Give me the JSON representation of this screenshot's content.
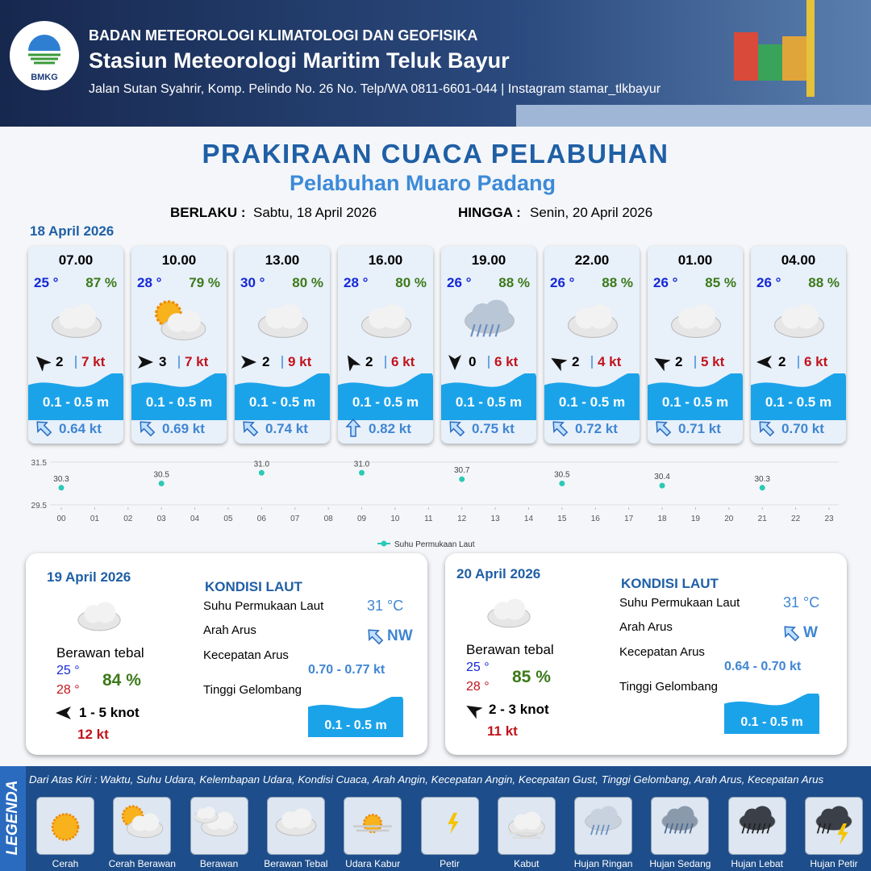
{
  "header": {
    "logo": "BMKG",
    "org": "BADAN METEOROLOGI KLIMATOLOGI DAN GEOFISIKA",
    "station": "Stasiun Meteorologi Maritim Teluk Bayur",
    "address": "Jalan Sutan Syahrir, Komp. Pelindo No. 26 No. Telp/WA 0811-6601-044 | Instagram stamar_tlkbayur"
  },
  "title": "PRAKIRAAN CUACA PELABUHAN",
  "subtitle": "Pelabuhan Muaro Padang",
  "validity": {
    "from_label": "BERLAKU :",
    "from": "Sabtu, 18 April 2026",
    "to_label": "HINGGA :",
    "to": "Senin, 20 April 2026"
  },
  "today": {
    "date": "18 April 2026",
    "forecasts": [
      {
        "time": "07.00",
        "temp": "25 °",
        "humidity": "87 %",
        "wind": 2,
        "gust": "7 kt",
        "wave": "0.1 - 0.5 m",
        "current": "0.64 kt"
      },
      {
        "time": "10.00",
        "temp": "28 °",
        "humidity": "79 %",
        "wind": 3,
        "gust": "7 kt",
        "wave": "0.1 - 0.5 m",
        "current": "0.69 kt"
      },
      {
        "time": "13.00",
        "temp": "30 °",
        "humidity": "80 %",
        "wind": 2,
        "gust": "9 kt",
        "wave": "0.1 - 0.5 m",
        "current": "0.74 kt"
      },
      {
        "time": "16.00",
        "temp": "28 °",
        "humidity": "80 %",
        "wind": 2,
        "gust": "6 kt",
        "wave": "0.1 - 0.5 m",
        "current": "0.82 kt"
      },
      {
        "time": "19.00",
        "temp": "26 °",
        "humidity": "88 %",
        "wind": 0,
        "gust": "6 kt",
        "wave": "0.1 - 0.5 m",
        "current": "0.75 kt"
      },
      {
        "time": "22.00",
        "temp": "26 °",
        "humidity": "88 %",
        "wind": 2,
        "gust": "4 kt",
        "wave": "0.1 - 0.5 m",
        "current": "0.72 kt"
      },
      {
        "time": "01.00",
        "temp": "26 °",
        "humidity": "85 %",
        "wind": 2,
        "gust": "5 kt",
        "wave": "0.1 - 0.5 m",
        "current": "0.71 kt"
      },
      {
        "time": "04.00",
        "temp": "26 °",
        "humidity": "88 %",
        "wind": 2,
        "gust": "6 kt",
        "wave": "0.1 - 0.5 m",
        "current": "0.70 kt"
      }
    ]
  },
  "chart_data": {
    "type": "scatter",
    "x": [
      0,
      3,
      6,
      9,
      12,
      15,
      18,
      21
    ],
    "values": [
      30.3,
      30.5,
      31.0,
      31.0,
      30.7,
      30.5,
      30.4,
      30.3
    ],
    "value_labels": [
      "30.3",
      "30.5",
      "31.0",
      "31.0",
      "30.7",
      "30.5",
      "30.4",
      "30.3"
    ],
    "series_name": "Suhu Permukaan Laut",
    "color": "#2cc9b5",
    "xlim": [
      0,
      23
    ],
    "ylim": [
      29.5,
      31.5
    ],
    "yticks": [
      29.5,
      31.5
    ],
    "xticks": [
      {
        "value": 0,
        "label": "00"
      },
      {
        "value": 1,
        "label": "01"
      },
      {
        "value": 2,
        "label": "02"
      },
      {
        "value": 3,
        "label": "03"
      },
      {
        "value": 4,
        "label": "04"
      },
      {
        "value": 5,
        "label": "05"
      },
      {
        "value": 6,
        "label": "06"
      },
      {
        "value": 7,
        "label": "07"
      },
      {
        "value": 8,
        "label": "08"
      },
      {
        "value": 9,
        "label": "09"
      },
      10,
      11,
      12,
      13,
      14,
      15,
      16,
      17,
      18,
      19,
      20,
      21,
      22,
      23
    ],
    "grid": true
  },
  "days": [
    {
      "date": "19 April 2026",
      "condition": "Berawan tebal",
      "tmin": "25 °",
      "tmax": "28 °",
      "humidity": "84 %",
      "wind": "1 - 5 knot",
      "gust": "12 kt",
      "sea": {
        "heading": "KONDISI LAUT",
        "sst_label": "Suhu Permukaan Laut",
        "sst": "31 °C",
        "dir_label": "Arah Arus",
        "dir": "NW",
        "speed_label": "Kecepatan Arus",
        "speed": "0.70 - 0.77 kt",
        "wave_label": "Tinggi Gelombang",
        "wave": "0.1 - 0.5 m"
      }
    },
    {
      "date": "20 April 2026",
      "condition": "Berawan tebal",
      "tmin": "25 °",
      "tmax": "28 °",
      "humidity": "85 %",
      "wind": "2 - 3 knot",
      "gust": "11 kt",
      "sea": {
        "heading": "KONDISI LAUT",
        "sst_label": "Suhu Permukaan Laut",
        "sst": "31 °C",
        "dir_label": "Arah Arus",
        "dir": "W",
        "speed_label": "Kecepatan Arus",
        "speed": "0.64 - 0.70 kt",
        "wave_label": "Tinggi Gelombang",
        "wave": "0.1 - 0.5 m"
      }
    }
  ],
  "legend": {
    "title": "LEGENDA",
    "description": "Dari Atas Kiri : Waktu, Suhu Udara, Kelembapan Udara, Kondisi Cuaca, Arah Angin, Kecepatan Angin, Kecepatan Gust, Tinggi Gelombang, Arah Arus, Kecepatan Arus",
    "items": [
      "Cerah",
      "Cerah Berawan",
      "Berawan",
      "Berawan Tebal",
      "Udara Kabur",
      "Petir",
      "Kabut",
      "Hujan Ringan",
      "Hujan Sedang",
      "Hujan Lebat",
      "Hujan Petir"
    ]
  }
}
